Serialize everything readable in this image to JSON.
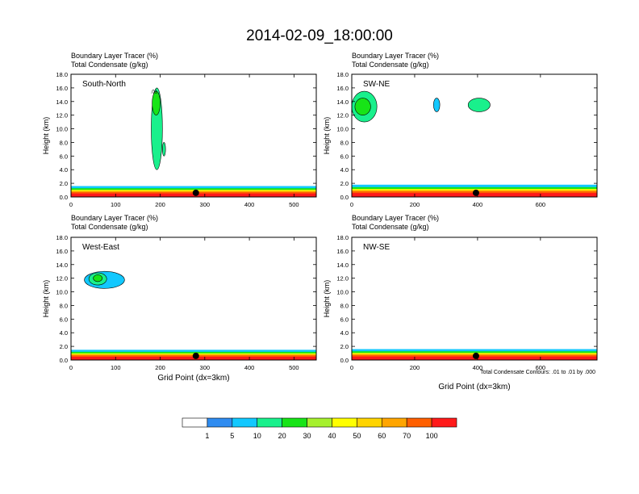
{
  "title": "2014-02-09_18:00:00",
  "panel_header": {
    "line1": "Boundary Layer Tracer   (%)",
    "line2": "Total Condensate   (g/kg)"
  },
  "ylabel": "Height (km)",
  "xlabel": "Grid Point (dx=3km)",
  "contour_note": "Total Condensate Contours: .01 to .01 by .000",
  "colorbar": {
    "colors": [
      "#ffffff",
      "#2f8cf0",
      "#12c8ff",
      "#19f08c",
      "#17e417",
      "#a6f02d",
      "#ffff00",
      "#ffd400",
      "#ffa500",
      "#ff5f00",
      "#ff1a1a"
    ],
    "labels": [
      "1",
      "5",
      "10",
      "20",
      "30",
      "40",
      "50",
      "60",
      "70",
      "100"
    ]
  },
  "chart_data": [
    {
      "type": "heatmap",
      "name": "South-North",
      "xlim": [
        0,
        550
      ],
      "ylim": [
        0,
        18
      ],
      "xticks": [
        0,
        100,
        200,
        300,
        400,
        500
      ],
      "yticks": [
        0,
        2,
        4,
        6,
        8,
        10,
        12,
        14,
        16,
        18
      ],
      "xtick_labels": [
        "0",
        "100",
        "200",
        "300",
        "400",
        "500"
      ],
      "ytick_labels": [
        "0.0",
        "2.0",
        "4.0",
        "6.0",
        "8.0",
        "10.0",
        "12.0",
        "14.0",
        "16.0",
        "18.0"
      ],
      "boundary_layer_top_km": 1.6,
      "marker_x": 280,
      "features": [
        {
          "x": [
            180,
            205
          ],
          "y": [
            4,
            16
          ],
          "tracer_pct": 10
        },
        {
          "x": [
            182,
            200
          ],
          "y": [
            12,
            15.5
          ],
          "tracer_pct": 20
        },
        {
          "x": [
            205,
            212
          ],
          "y": [
            6,
            8
          ],
          "tracer_pct": 10
        }
      ],
      "contour_labels": [
        {
          "x": 186,
          "y": 15.2,
          "text": ".01"
        }
      ]
    },
    {
      "type": "heatmap",
      "name": "SW-NE",
      "xlim": [
        0,
        780
      ],
      "ylim": [
        0,
        18
      ],
      "xticks": [
        0,
        200,
        400,
        600
      ],
      "yticks": [
        0,
        2,
        4,
        6,
        8,
        10,
        12,
        14,
        16,
        18
      ],
      "xtick_labels": [
        "0",
        "200",
        "400",
        "600"
      ],
      "ytick_labels": [
        "0.0",
        "2.0",
        "4.0",
        "6.0",
        "8.0",
        "10.0",
        "12.0",
        "14.0",
        "16.0",
        "18.0"
      ],
      "boundary_layer_top_km": 1.8,
      "marker_x": 395,
      "features": [
        {
          "x": [
            0,
            80
          ],
          "y": [
            11,
            15.5
          ],
          "tracer_pct": 10
        },
        {
          "x": [
            10,
            60
          ],
          "y": [
            12,
            14.5
          ],
          "tracer_pct": 20
        },
        {
          "x": [
            370,
            440
          ],
          "y": [
            12.5,
            14.5
          ],
          "tracer_pct": 10
        },
        {
          "x": [
            260,
            280
          ],
          "y": [
            12.5,
            14.5
          ],
          "tracer_pct": 5
        }
      ],
      "contour_labels": []
    },
    {
      "type": "heatmap",
      "name": "West-East",
      "xlim": [
        0,
        550
      ],
      "ylim": [
        0,
        18
      ],
      "xticks": [
        0,
        100,
        200,
        300,
        400,
        500
      ],
      "yticks": [
        0,
        2,
        4,
        6,
        8,
        10,
        12,
        14,
        16,
        18
      ],
      "xtick_labels": [
        "0",
        "100",
        "200",
        "300",
        "400",
        "500"
      ],
      "ytick_labels": [
        "0.0",
        "2.0",
        "4.0",
        "6.0",
        "8.0",
        "10.0",
        "12.0",
        "14.0",
        "16.0",
        "18.0"
      ],
      "boundary_layer_top_km": 1.5,
      "marker_x": 280,
      "features": [
        {
          "x": [
            30,
            120
          ],
          "y": [
            10.5,
            13
          ],
          "tracer_pct": 5
        },
        {
          "x": [
            40,
            80
          ],
          "y": [
            11,
            12.8
          ],
          "tracer_pct": 10
        },
        {
          "x": [
            50,
            70
          ],
          "y": [
            11.5,
            12.5
          ],
          "tracer_pct": 20
        }
      ],
      "contour_labels": []
    },
    {
      "type": "heatmap",
      "name": "NW-SE",
      "xlim": [
        0,
        780
      ],
      "ylim": [
        0,
        18
      ],
      "xticks": [
        0,
        200,
        400,
        600
      ],
      "yticks": [
        0,
        2,
        4,
        6,
        8,
        10,
        12,
        14,
        16,
        18
      ],
      "xtick_labels": [
        "0",
        "200",
        "400",
        "600"
      ],
      "ytick_labels": [
        "0.0",
        "2.0",
        "4.0",
        "6.0",
        "8.0",
        "10.0",
        "12.0",
        "14.0",
        "16.0",
        "18.0"
      ],
      "boundary_layer_top_km": 1.6,
      "marker_x": 395,
      "features": [],
      "contour_labels": []
    }
  ]
}
